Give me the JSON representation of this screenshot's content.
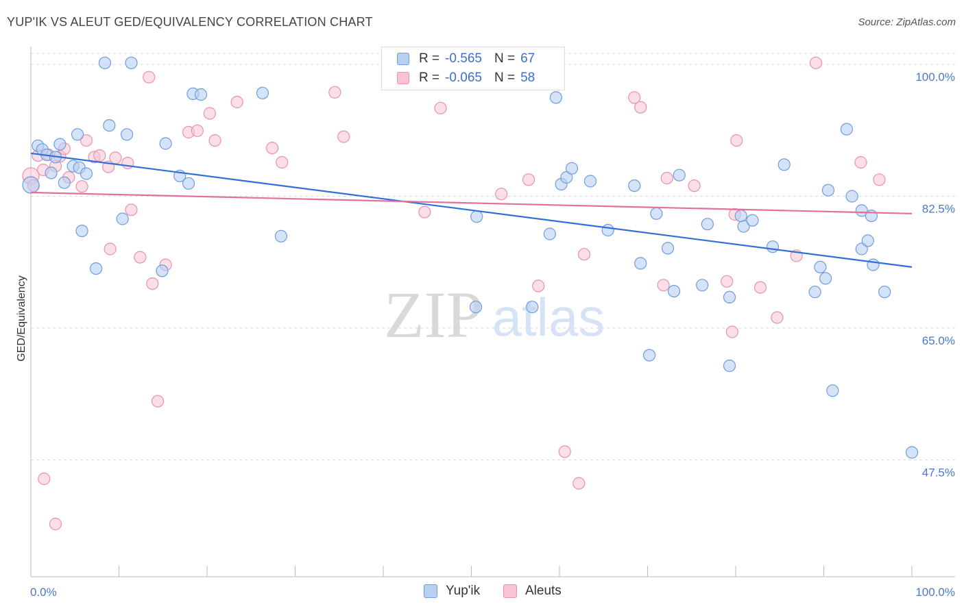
{
  "title": "YUP'IK VS ALEUT GED/EQUIVALENCY CORRELATION CHART",
  "source": "Source: ZipAtlas.com",
  "watermark": {
    "zip": "ZIP",
    "atlas": "atlas"
  },
  "legend": {
    "rows": [
      {
        "r_label": "R =",
        "r_value": "-0.565",
        "n_label": "N =",
        "n_value": "67"
      },
      {
        "r_label": "R =",
        "r_value": "-0.065",
        "n_label": "N =",
        "n_value": "58"
      }
    ]
  },
  "bottom_legend": [
    "Yup'ik",
    "Aleuts"
  ],
  "colors": {
    "blue_fill": "#b8d0f2",
    "blue_stroke": "#6f9be0",
    "blue_line": "#2f6fd6",
    "pink_fill": "#f8c4d4",
    "pink_stroke": "#ec8fae",
    "pink_line": "#e3709a",
    "tick_text": "#4a78c8",
    "grid": "#d8d8d8"
  },
  "chart_data": {
    "type": "scatter",
    "title": "YUP'IK VS ALEUT GED/EQUIVALENCY CORRELATION CHART",
    "xlabel": "",
    "ylabel": "GED/Equivalency",
    "xlim": [
      0,
      100
    ],
    "ylim": [
      32,
      102
    ],
    "x_tick_labels": [
      "0.0%",
      "100.0%"
    ],
    "y_ticks": [
      {
        "value": 100,
        "label": "100.0%"
      },
      {
        "value": 82.5,
        "label": "82.5%"
      },
      {
        "value": 65,
        "label": "65.0%"
      },
      {
        "value": 47.5,
        "label": "47.5%"
      }
    ],
    "grid": true,
    "legend_position": "top-center",
    "series": [
      {
        "name": "Yup'ik",
        "color": "#6f9be0",
        "R": -0.565,
        "N": 67,
        "trend": {
          "x": [
            0,
            100
          ],
          "y": [
            88.2,
            73.1
          ]
        },
        "points": [
          [
            0.0,
            84.0
          ],
          [
            0.8,
            89.2
          ],
          [
            1.3,
            88.7
          ],
          [
            1.8,
            88.0
          ],
          [
            2.3,
            85.6
          ],
          [
            2.8,
            87.7
          ],
          [
            3.3,
            89.4
          ],
          [
            3.8,
            84.3
          ],
          [
            4.8,
            86.5
          ],
          [
            5.3,
            90.7
          ],
          [
            5.5,
            86.3
          ],
          [
            6.3,
            85.5
          ],
          [
            5.8,
            77.9
          ],
          [
            7.4,
            72.9
          ],
          [
            8.4,
            100.2
          ],
          [
            8.9,
            91.9
          ],
          [
            10.9,
            90.7
          ],
          [
            11.4,
            100.2
          ],
          [
            10.4,
            79.5
          ],
          [
            14.9,
            72.6
          ],
          [
            15.3,
            89.5
          ],
          [
            16.9,
            85.2
          ],
          [
            17.9,
            84.2
          ],
          [
            18.4,
            96.1
          ],
          [
            19.3,
            96.0
          ],
          [
            26.3,
            96.2
          ],
          [
            28.4,
            77.2
          ],
          [
            50.5,
            67.8
          ],
          [
            50.6,
            79.8
          ],
          [
            56.9,
            67.8
          ],
          [
            58.9,
            77.5
          ],
          [
            59.6,
            95.6
          ],
          [
            60.2,
            84.1
          ],
          [
            60.8,
            85.0
          ],
          [
            61.4,
            86.2
          ],
          [
            63.5,
            84.5
          ],
          [
            65.5,
            78.0
          ],
          [
            68.5,
            83.9
          ],
          [
            69.2,
            73.6
          ],
          [
            70.2,
            61.4
          ],
          [
            71.0,
            80.2
          ],
          [
            73.0,
            69.9
          ],
          [
            72.3,
            75.6
          ],
          [
            73.6,
            85.3
          ],
          [
            76.8,
            78.8
          ],
          [
            76.2,
            70.7
          ],
          [
            79.3,
            69.1
          ],
          [
            79.3,
            60.0
          ],
          [
            80.9,
            78.5
          ],
          [
            80.6,
            79.9
          ],
          [
            81.9,
            79.3
          ],
          [
            84.2,
            75.8
          ],
          [
            85.5,
            86.7
          ],
          [
            89.0,
            69.8
          ],
          [
            89.6,
            73.1
          ],
          [
            90.2,
            71.6
          ],
          [
            90.5,
            83.3
          ],
          [
            91.0,
            56.7
          ],
          [
            92.6,
            91.4
          ],
          [
            93.2,
            82.5
          ],
          [
            94.3,
            80.6
          ],
          [
            94.3,
            75.5
          ],
          [
            95.0,
            76.6
          ],
          [
            95.6,
            73.4
          ],
          [
            95.4,
            79.9
          ],
          [
            96.9,
            69.8
          ],
          [
            100.0,
            48.5
          ]
        ]
      },
      {
        "name": "Aleuts",
        "color": "#ec8fae",
        "R": -0.065,
        "N": 58,
        "trend": {
          "x": [
            0,
            100
          ],
          "y": [
            83.0,
            80.2
          ]
        },
        "points": [
          [
            0.0,
            85.2
          ],
          [
            0.8,
            87.9
          ],
          [
            1.4,
            86.0
          ],
          [
            2.0,
            88.0
          ],
          [
            2.8,
            86.5
          ],
          [
            3.3,
            87.8
          ],
          [
            3.8,
            88.8
          ],
          [
            4.3,
            85.0
          ],
          [
            5.8,
            83.8
          ],
          [
            6.3,
            89.9
          ],
          [
            7.2,
            87.7
          ],
          [
            7.8,
            87.9
          ],
          [
            8.8,
            86.4
          ],
          [
            9.6,
            87.6
          ],
          [
            9.0,
            75.5
          ],
          [
            11.0,
            86.9
          ],
          [
            11.4,
            80.7
          ],
          [
            12.4,
            74.4
          ],
          [
            13.4,
            98.3
          ],
          [
            13.8,
            70.9
          ],
          [
            14.4,
            55.3
          ],
          [
            15.3,
            73.4
          ],
          [
            17.9,
            91.0
          ],
          [
            18.9,
            91.2
          ],
          [
            20.3,
            93.5
          ],
          [
            20.9,
            89.9
          ],
          [
            23.4,
            95.0
          ],
          [
            27.4,
            88.9
          ],
          [
            28.5,
            87.0
          ],
          [
            34.5,
            96.3
          ],
          [
            35.5,
            90.4
          ],
          [
            44.7,
            80.4
          ],
          [
            46.5,
            94.2
          ],
          [
            53.4,
            82.8
          ],
          [
            56.5,
            84.7
          ],
          [
            56.5,
            99.8
          ],
          [
            57.6,
            70.6
          ],
          [
            60.6,
            48.6
          ],
          [
            62.2,
            44.4
          ],
          [
            62.8,
            74.8
          ],
          [
            68.5,
            95.6
          ],
          [
            69.2,
            94.3
          ],
          [
            71.8,
            70.7
          ],
          [
            72.2,
            84.9
          ],
          [
            75.3,
            83.9
          ],
          [
            79.0,
            71.2
          ],
          [
            79.6,
            64.5
          ],
          [
            79.9,
            80.1
          ],
          [
            80.1,
            89.9
          ],
          [
            82.8,
            70.4
          ],
          [
            84.7,
            66.4
          ],
          [
            86.9,
            74.6
          ],
          [
            89.1,
            100.2
          ],
          [
            94.2,
            87.0
          ],
          [
            96.3,
            84.7
          ],
          [
            1.5,
            45.0
          ],
          [
            2.8,
            39.0
          ],
          [
            0.3,
            83.9
          ]
        ]
      }
    ]
  }
}
